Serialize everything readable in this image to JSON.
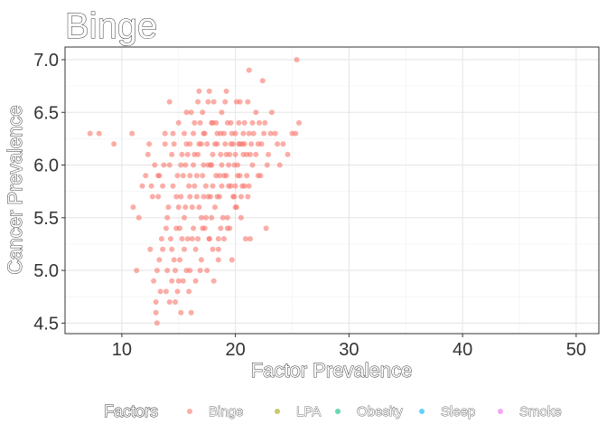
{
  "chart_data": {
    "type": "scatter",
    "title": "Binge",
    "xlabel": "Factor Prevalence",
    "ylabel": "Cancer Prevalence",
    "xlim": [
      5,
      52
    ],
    "ylim": [
      4.4,
      7.12
    ],
    "xticks": [
      10,
      20,
      30,
      40,
      50
    ],
    "yticks": [
      4.5,
      5.0,
      5.5,
      6.0,
      6.5,
      7.0
    ],
    "xtick_labels": [
      "10",
      "20",
      "30",
      "40",
      "50"
    ],
    "ytick_labels": [
      "4.5",
      "5.0",
      "5.5",
      "6.0",
      "6.5",
      "7.0"
    ],
    "grid": true,
    "legend": {
      "title": "Factors",
      "position": "bottom",
      "entries": [
        {
          "name": "Binge",
          "color": "#F8766D"
        },
        {
          "name": "LPA",
          "color": "#A3A500"
        },
        {
          "name": "Obesity",
          "color": "#00BF7D"
        },
        {
          "name": "Sleep",
          "color": "#00B0F6"
        },
        {
          "name": "Smoke",
          "color": "#E76BF3"
        }
      ]
    },
    "series": [
      {
        "name": "Binge",
        "color": "#F8766D",
        "points": [
          [
            7.2,
            6.3
          ],
          [
            8.0,
            6.3
          ],
          [
            9.3,
            6.2
          ],
          [
            10.9,
            6.3
          ],
          [
            11.0,
            5.6
          ],
          [
            11.3,
            5.0
          ],
          [
            11.5,
            5.5
          ],
          [
            11.8,
            5.8
          ],
          [
            12.1,
            5.9
          ],
          [
            12.3,
            6.1
          ],
          [
            12.4,
            6.2
          ],
          [
            12.5,
            5.2
          ],
          [
            12.6,
            5.8
          ],
          [
            12.8,
            4.9
          ],
          [
            12.9,
            6.0
          ],
          [
            13.0,
            4.6
          ],
          [
            13.0,
            4.7
          ],
          [
            13.1,
            5.0
          ],
          [
            13.2,
            5.7
          ],
          [
            13.3,
            5.9
          ],
          [
            13.4,
            4.8
          ],
          [
            13.5,
            5.3
          ],
          [
            13.6,
            5.8
          ],
          [
            13.7,
            6.0
          ],
          [
            13.8,
            6.3
          ],
          [
            13.9,
            5.4
          ],
          [
            13.1,
            4.5
          ],
          [
            14.0,
            5.0
          ],
          [
            14.1,
            5.6
          ],
          [
            14.2,
            6.0
          ],
          [
            14.2,
            6.6
          ],
          [
            14.4,
            5.2
          ],
          [
            14.5,
            5.8
          ],
          [
            14.6,
            6.2
          ],
          [
            14.7,
            4.7
          ],
          [
            14.8,
            5.4
          ],
          [
            14.9,
            5.9
          ],
          [
            15.0,
            6.4
          ],
          [
            15.1,
            5.1
          ],
          [
            15.2,
            5.7
          ],
          [
            15.3,
            6.1
          ],
          [
            15.4,
            4.9
          ],
          [
            15.5,
            5.5
          ],
          [
            15.6,
            6.0
          ],
          [
            15.7,
            6.5
          ],
          [
            15.8,
            5.3
          ],
          [
            15.9,
            5.8
          ],
          [
            16.0,
            6.2
          ],
          [
            16.1,
            4.6
          ],
          [
            16.2,
            5.6
          ],
          [
            16.3,
            6.0
          ],
          [
            16.4,
            6.4
          ],
          [
            16.5,
            5.2
          ],
          [
            16.6,
            5.7
          ],
          [
            16.7,
            6.1
          ],
          [
            16.8,
            6.7
          ],
          [
            16.9,
            5.0
          ],
          [
            17.0,
            5.5
          ],
          [
            17.1,
            5.9
          ],
          [
            17.2,
            6.3
          ],
          [
            17.3,
            5.4
          ],
          [
            17.4,
            5.8
          ],
          [
            17.5,
            6.2
          ],
          [
            17.6,
            6.6
          ],
          [
            17.7,
            5.3
          ],
          [
            17.8,
            5.7
          ],
          [
            17.9,
            6.0
          ],
          [
            18.0,
            6.4
          ],
          [
            18.1,
            4.9
          ],
          [
            18.2,
            5.6
          ],
          [
            18.3,
            5.9
          ],
          [
            18.4,
            6.3
          ],
          [
            18.5,
            5.2
          ],
          [
            18.6,
            5.7
          ],
          [
            18.7,
            6.1
          ],
          [
            18.8,
            6.5
          ],
          [
            18.9,
            5.5
          ],
          [
            19.0,
            5.9
          ],
          [
            19.1,
            6.2
          ],
          [
            19.2,
            6.7
          ],
          [
            19.3,
            5.4
          ],
          [
            19.4,
            5.8
          ],
          [
            19.5,
            6.1
          ],
          [
            19.6,
            6.4
          ],
          [
            19.7,
            5.1
          ],
          [
            19.8,
            5.7
          ],
          [
            19.9,
            6.0
          ],
          [
            20.0,
            6.3
          ],
          [
            20.1,
            5.6
          ],
          [
            20.2,
            5.9
          ],
          [
            20.3,
            6.2
          ],
          [
            20.4,
            6.6
          ],
          [
            20.5,
            5.5
          ],
          [
            20.6,
            5.8
          ],
          [
            20.7,
            6.1
          ],
          [
            20.8,
            6.4
          ],
          [
            20.9,
            5.3
          ],
          [
            21.0,
            5.9
          ],
          [
            21.2,
            6.3
          ],
          [
            21.2,
            6.9
          ],
          [
            21.3,
            5.3
          ],
          [
            21.5,
            6.0
          ],
          [
            21.8,
            6.5
          ],
          [
            22.0,
            6.2
          ],
          [
            22.2,
            5.9
          ],
          [
            22.4,
            6.8
          ],
          [
            22.6,
            6.4
          ],
          [
            22.7,
            5.4
          ],
          [
            22.9,
            6.1
          ],
          [
            23.2,
            6.5
          ],
          [
            23.5,
            6.3
          ],
          [
            23.9,
            6.0
          ],
          [
            24.2,
            6.2
          ],
          [
            24.6,
            6.1
          ],
          [
            25.0,
            6.3
          ],
          [
            25.3,
            6.3
          ],
          [
            25.4,
            7.0
          ],
          [
            25.6,
            6.4
          ],
          [
            14.3,
            5.3
          ],
          [
            14.6,
            5.1
          ],
          [
            15.0,
            5.6
          ],
          [
            15.4,
            5.9
          ],
          [
            15.8,
            6.1
          ],
          [
            16.2,
            5.3
          ],
          [
            16.6,
            5.9
          ],
          [
            17.0,
            6.2
          ],
          [
            17.4,
            5.5
          ],
          [
            17.8,
            6.0
          ],
          [
            18.2,
            6.2
          ],
          [
            18.6,
            5.9
          ],
          [
            19.0,
            6.3
          ],
          [
            19.4,
            6.0
          ],
          [
            19.8,
            6.2
          ],
          [
            20.2,
            6.0
          ],
          [
            20.6,
            6.2
          ],
          [
            21.0,
            6.1
          ],
          [
            21.4,
            6.2
          ],
          [
            21.8,
            6.1
          ],
          [
            15.1,
            5.4
          ],
          [
            15.5,
            6.3
          ],
          [
            16.0,
            5.9
          ],
          [
            16.4,
            5.8
          ],
          [
            16.8,
            6.2
          ],
          [
            17.2,
            5.7
          ],
          [
            17.6,
            6.0
          ],
          [
            18.0,
            5.8
          ],
          [
            18.4,
            6.2
          ],
          [
            18.8,
            5.8
          ],
          [
            19.2,
            6.1
          ],
          [
            19.6,
            5.8
          ],
          [
            20.0,
            6.1
          ],
          [
            20.4,
            5.9
          ],
          [
            20.8,
            6.2
          ],
          [
            21.2,
            5.8
          ],
          [
            21.6,
            6.3
          ],
          [
            22.0,
            5.9
          ],
          [
            22.3,
            6.2
          ],
          [
            22.8,
            6.0
          ],
          [
            13.6,
            5.2
          ],
          [
            14.0,
            5.5
          ],
          [
            14.4,
            6.1
          ],
          [
            14.8,
            5.7
          ],
          [
            15.2,
            6.0
          ],
          [
            15.6,
            5.6
          ],
          [
            16.0,
            5.7
          ],
          [
            16.4,
            6.1
          ],
          [
            16.8,
            5.6
          ],
          [
            17.2,
            6.0
          ],
          [
            17.6,
            5.7
          ],
          [
            18.0,
            6.1
          ],
          [
            18.4,
            5.7
          ],
          [
            18.8,
            6.0
          ],
          [
            19.2,
            5.9
          ],
          [
            19.6,
            6.2
          ],
          [
            20.0,
            5.8
          ],
          [
            20.4,
            6.2
          ],
          [
            20.8,
            5.8
          ],
          [
            21.3,
            6.1
          ],
          [
            13.3,
            5.1
          ],
          [
            13.8,
            6.2
          ],
          [
            14.5,
            6.3
          ],
          [
            15.0,
            4.9
          ],
          [
            15.3,
            5.3
          ],
          [
            15.9,
            4.8
          ],
          [
            16.5,
            4.9
          ],
          [
            17.0,
            5.1
          ],
          [
            17.5,
            5.0
          ],
          [
            18.0,
            5.2
          ],
          [
            18.5,
            5.1
          ],
          [
            19.0,
            5.3
          ],
          [
            19.5,
            5.4
          ],
          [
            20.0,
            5.6
          ],
          [
            16.1,
            6.5
          ],
          [
            17.1,
            6.5
          ],
          [
            18.1,
            6.6
          ],
          [
            19.1,
            6.6
          ],
          [
            20.1,
            6.6
          ],
          [
            21.1,
            6.6
          ],
          [
            12.7,
            5.7
          ],
          [
            13.2,
            5.9
          ],
          [
            15.7,
            6.2
          ],
          [
            16.3,
            6.3
          ],
          [
            16.9,
            6.4
          ],
          [
            17.3,
            6.3
          ],
          [
            17.9,
            6.4
          ],
          [
            18.3,
            6.4
          ],
          [
            18.7,
            6.3
          ],
          [
            19.3,
            6.4
          ],
          [
            19.7,
            6.3
          ],
          [
            20.3,
            6.4
          ],
          [
            20.7,
            6.3
          ],
          [
            21.5,
            6.4
          ],
          [
            22.1,
            6.4
          ],
          [
            22.5,
            6.3
          ],
          [
            23.1,
            6.3
          ],
          [
            23.7,
            6.2
          ],
          [
            17.7,
            6.7
          ],
          [
            16.7,
            6.6
          ],
          [
            15.2,
            4.6
          ],
          [
            14.9,
            4.8
          ],
          [
            14.7,
            5.0
          ],
          [
            15.5,
            5.2
          ],
          [
            16.3,
            5.4
          ],
          [
            17.1,
            5.4
          ],
          [
            17.9,
            5.5
          ],
          [
            18.7,
            5.4
          ],
          [
            19.3,
            5.5
          ],
          [
            19.9,
            5.7
          ],
          [
            20.5,
            5.7
          ],
          [
            21.1,
            5.7
          ],
          [
            15.7,
            5.0
          ],
          [
            16.7,
            5.3
          ],
          [
            17.7,
            5.3
          ],
          [
            18.5,
            5.3
          ],
          [
            14.2,
            4.7
          ],
          [
            13.9,
            4.8
          ],
          [
            14.4,
            4.9
          ],
          [
            16.0,
            5.0
          ]
        ]
      }
    ]
  }
}
